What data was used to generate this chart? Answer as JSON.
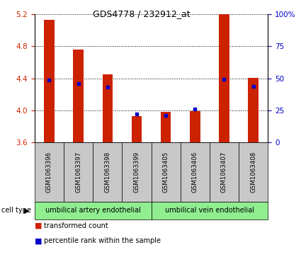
{
  "title": "GDS4778 / 232912_at",
  "samples": [
    "GSM1063396",
    "GSM1063397",
    "GSM1063398",
    "GSM1063399",
    "GSM1063405",
    "GSM1063406",
    "GSM1063407",
    "GSM1063408"
  ],
  "transformed_count": [
    5.13,
    4.76,
    4.45,
    3.93,
    3.98,
    3.99,
    5.21,
    4.41
  ],
  "percentile_rank": [
    4.38,
    4.34,
    4.29,
    3.96,
    3.94,
    4.02,
    4.39,
    4.3
  ],
  "ylim": [
    3.6,
    5.2
  ],
  "yticks": [
    3.6,
    4.0,
    4.4,
    4.8,
    5.2
  ],
  "right_yticks": [
    0,
    25,
    50,
    75,
    100
  ],
  "bar_color": "#cc2200",
  "marker_color": "#0000cc",
  "cell_types": [
    {
      "label": "umbilical artery endothelial",
      "start": 0,
      "end": 4
    },
    {
      "label": "umbilical vein endothelial",
      "start": 4,
      "end": 8
    }
  ],
  "cell_type_bg": "#90ee90",
  "sample_bg": "#c8c8c8",
  "bar_width": 0.35,
  "baseline": 3.6
}
